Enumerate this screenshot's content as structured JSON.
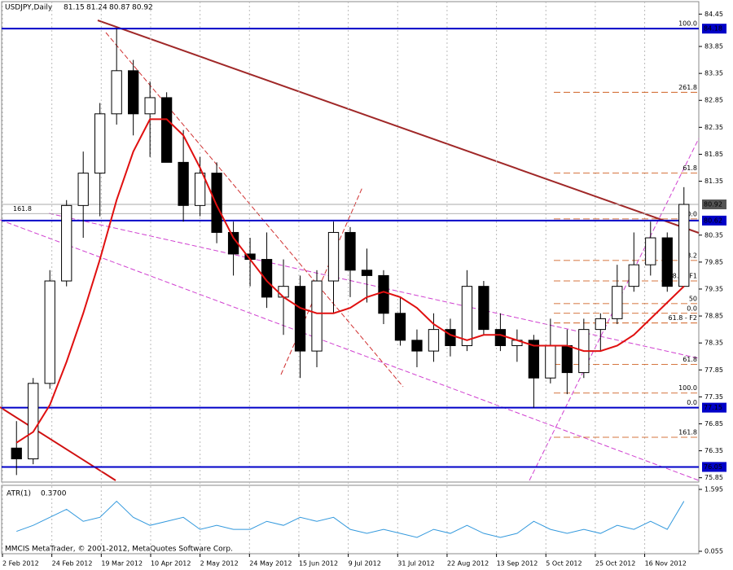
{
  "chart_data": {
    "type": "candlestick",
    "title": "USDJPY,Daily",
    "header_ohlc": [
      81.15,
      81.24,
      80.87,
      80.92
    ],
    "ylim": [
      75.8,
      84.5
    ],
    "yticks": [
      84.45,
      83.85,
      83.35,
      82.85,
      82.35,
      81.85,
      81.35,
      80.35,
      79.85,
      79.35,
      78.85,
      78.35,
      77.85,
      77.35,
      76.85,
      76.35,
      75.85
    ],
    "x_labels": [
      "2 Feb 2012",
      "24 Feb 2012",
      "19 Mar 2012",
      "10 Apr 2012",
      "2 May 2012",
      "24 May 2012",
      "15 Jun 2012",
      "9 Jul 2012",
      "31 Jul 2012",
      "22 Aug 2012",
      "13 Sep 2012",
      "5 Oct 2012",
      "25 Oct 2012",
      "16 Nov 2012"
    ],
    "up_color": "#000000",
    "down_color": "#000000",
    "ohlc": [
      [
        76.4,
        76.9,
        75.9,
        76.2
      ],
      [
        76.2,
        77.7,
        76.1,
        77.6
      ],
      [
        77.6,
        79.7,
        77.5,
        79.5
      ],
      [
        79.5,
        81.0,
        79.4,
        80.9
      ],
      [
        80.9,
        81.9,
        80.3,
        81.5
      ],
      [
        81.5,
        82.8,
        80.7,
        82.6
      ],
      [
        82.6,
        84.18,
        82.4,
        83.4
      ],
      [
        83.4,
        83.6,
        82.2,
        82.6
      ],
      [
        82.6,
        83.2,
        81.8,
        82.9
      ],
      [
        82.9,
        83.0,
        81.7,
        81.7
      ],
      [
        81.7,
        82.3,
        80.6,
        80.9
      ],
      [
        80.9,
        81.8,
        80.7,
        81.5
      ],
      [
        81.5,
        81.7,
        80.2,
        80.4
      ],
      [
        80.4,
        80.6,
        79.6,
        80.0
      ],
      [
        80.0,
        80.3,
        79.4,
        79.9
      ],
      [
        79.9,
        80.4,
        79.0,
        79.2
      ],
      [
        79.2,
        79.9,
        78.5,
        79.4
      ],
      [
        79.4,
        79.6,
        77.7,
        78.2
      ],
      [
        78.2,
        79.7,
        77.9,
        79.5
      ],
      [
        79.5,
        80.6,
        78.9,
        80.4
      ],
      [
        80.4,
        80.5,
        79.2,
        79.7
      ],
      [
        79.7,
        80.1,
        79.1,
        79.6
      ],
      [
        79.6,
        79.7,
        78.7,
        78.9
      ],
      [
        78.9,
        79.2,
        78.3,
        78.4
      ],
      [
        78.4,
        78.6,
        77.9,
        78.2
      ],
      [
        78.2,
        78.9,
        78.0,
        78.6
      ],
      [
        78.6,
        78.8,
        78.1,
        78.3
      ],
      [
        78.3,
        79.7,
        78.2,
        79.4
      ],
      [
        79.4,
        79.5,
        78.5,
        78.6
      ],
      [
        78.6,
        78.9,
        78.2,
        78.3
      ],
      [
        78.3,
        78.6,
        78.0,
        78.4
      ],
      [
        78.4,
        78.5,
        77.15,
        77.7
      ],
      [
        77.7,
        78.8,
        77.6,
        78.3
      ],
      [
        78.3,
        78.6,
        77.4,
        77.8
      ],
      [
        77.8,
        78.8,
        77.7,
        78.6
      ],
      [
        78.6,
        78.9,
        78.2,
        78.8
      ],
      [
        78.8,
        79.8,
        78.7,
        79.4
      ],
      [
        79.4,
        80.4,
        79.3,
        79.8
      ],
      [
        79.8,
        80.6,
        79.6,
        80.3
      ],
      [
        80.3,
        80.4,
        79.3,
        79.4
      ],
      [
        79.4,
        81.24,
        79.4,
        80.92
      ]
    ],
    "ma_color": "#e01010",
    "ma": [
      76.5,
      76.7,
      77.2,
      78.0,
      78.9,
      79.9,
      81.0,
      81.9,
      82.5,
      82.5,
      82.2,
      81.6,
      80.9,
      80.3,
      79.9,
      79.5,
      79.2,
      79.0,
      78.9,
      78.9,
      79.0,
      79.2,
      79.3,
      79.2,
      79.0,
      78.7,
      78.5,
      78.4,
      78.5,
      78.5,
      78.4,
      78.3,
      78.3,
      78.3,
      78.2,
      78.2,
      78.3,
      78.5,
      78.8,
      79.1,
      79.4
    ],
    "levels": [
      84.18,
      80.62,
      77.15,
      76.05
    ],
    "level_color": "#0000c8",
    "current_price": 80.92,
    "fib": [
      {
        "label": "100.0",
        "value": 84.18
      },
      {
        "label": "261.8",
        "value": 83.0
      },
      {
        "label": "61.8",
        "value": 81.5
      },
      {
        "label": "50.0",
        "value": 80.65
      },
      {
        "label": "38.2",
        "value": 79.88
      },
      {
        "label": "38.2 - F1",
        "value": 79.5
      },
      {
        "label": "50",
        "value": 79.08
      },
      {
        "label": "0.0",
        "value": 78.9
      },
      {
        "label": "61.8 - F2",
        "value": 78.72
      },
      {
        "label": "61.8",
        "value": 77.95
      },
      {
        "label": "100.0",
        "value": 77.42
      },
      {
        "label": "0.0",
        "value": 77.15
      },
      {
        "label": "161.8",
        "value": 76.6
      }
    ],
    "fib_left": {
      "label": "161.8",
      "value": 80.75
    },
    "fib_color": "#c84800",
    "atr": {
      "name": "ATR(1)",
      "value": 0.37,
      "value_label": "0.3700",
      "color": "#3399dd",
      "ylim": [
        0.055,
        1.595
      ],
      "yticks": [
        1.595,
        0.055
      ],
      "values": [
        0.55,
        0.7,
        0.9,
        1.1,
        0.8,
        0.9,
        1.3,
        0.9,
        0.7,
        0.8,
        0.9,
        0.6,
        0.7,
        0.6,
        0.6,
        0.8,
        0.7,
        0.9,
        0.8,
        0.9,
        0.6,
        0.5,
        0.6,
        0.5,
        0.4,
        0.6,
        0.5,
        0.7,
        0.5,
        0.4,
        0.5,
        0.8,
        0.6,
        0.5,
        0.6,
        0.5,
        0.7,
        0.6,
        0.8,
        0.6,
        1.3
      ]
    },
    "footer": "MMCIS MetaTrader, © 2001-2012, MetaQuotes Software Corp."
  }
}
